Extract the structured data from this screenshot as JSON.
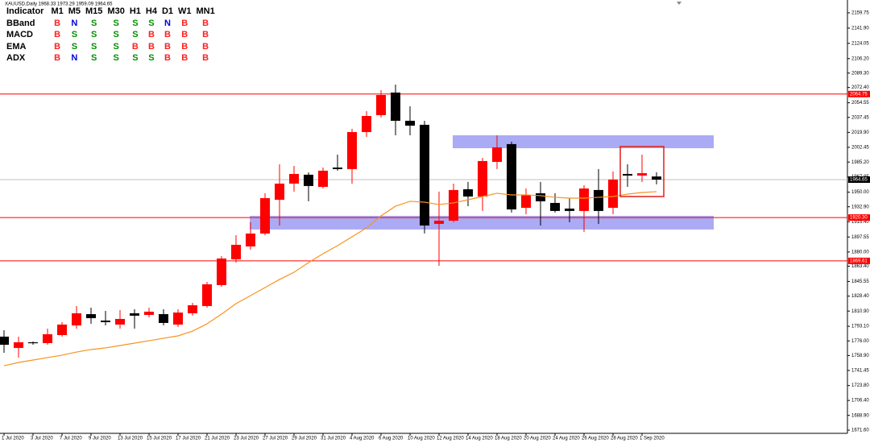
{
  "chart_data": {
    "type": "candlestick",
    "title": "XAUUSD,Daily 1968.33 1973.29 1959.09 1964.65",
    "categories": [
      "1 Jul 2020",
      null,
      "3 Jul 2020",
      null,
      "7 Jul 2020",
      null,
      "9 Jul 2020",
      null,
      "13 Jul 2020",
      null,
      "15 Jul 2020",
      null,
      "17 Jul 2020",
      null,
      "21 Jul 2020",
      null,
      "23 Jul 2020",
      null,
      "27 Jul 2020",
      null,
      "29 Jul 2020",
      null,
      "31 Jul 2020",
      null,
      "4 Aug 2020",
      null,
      "6 Aug 2020",
      null,
      "10 Aug 2020",
      null,
      "12 Aug 2020",
      null,
      "14 Aug 2020",
      null,
      "18 Aug 2020",
      null,
      "20 Aug 2020",
      null,
      "24 Aug 2020",
      null,
      "26 Aug 2020",
      null,
      "28 Aug 2020",
      null,
      "1 Sep 2020",
      null
    ],
    "open": [
      1781.0,
      1767.8,
      1774.4,
      1773.4,
      1782.8,
      1794.1,
      1807.3,
      1799.8,
      1795.1,
      1808.3,
      1806.4,
      1807.3,
      1795.1,
      1808.3,
      1816.8,
      1841.3,
      1871.4,
      1886.5,
      1901.6,
      1941.1,
      1960.0,
      1970.4,
      1956.2,
      1978.8,
      1977.0,
      2020.3,
      2040.1,
      2066.5,
      2033.5,
      2028.8,
      1912.9,
      1916.6,
      1953.4,
      1944.9,
      1985.4,
      2006.2,
      1931.7,
      1948.7,
      1937.4,
      1930.8,
      1928.0,
      1952.5,
      1931.7,
      1971.3,
      1969.4,
      1968.33
    ],
    "high": [
      1788.5,
      1781.0,
      1775.3,
      1790.4,
      1797.9,
      1816.8,
      1814.9,
      1811.1,
      1812.0,
      1813.0,
      1814.9,
      1813.0,
      1813.0,
      1820.5,
      1845.0,
      1875.2,
      1899.7,
      1914.8,
      1948.7,
      1982.6,
      1980.7,
      1973.2,
      1978.8,
      1993.9,
      2024.1,
      2044.8,
      2069.3,
      2075.9,
      2050.4,
      2033.5,
      1950.6,
      1960.0,
      1961.9,
      1990.1,
      2016.5,
      2009.0,
      1954.3,
      1961.9,
      1948.7,
      1943.0,
      1958.1,
      1977.0,
      1974.1,
      1982.6,
      1993.9,
      1973.29
    ],
    "low": [
      1762.1,
      1756.5,
      1771.5,
      1771.5,
      1781.0,
      1790.4,
      1796.0,
      1794.1,
      1790.4,
      1790.4,
      1803.6,
      1794.1,
      1792.3,
      1805.5,
      1814.9,
      1839.4,
      1867.6,
      1882.7,
      1899.7,
      1911.0,
      1950.6,
      1939.3,
      1954.3,
      1975.1,
      1960.0,
      2014.6,
      2037.3,
      2016.5,
      2016.5,
      1901.6,
      1863.9,
      1914.8,
      1933.6,
      1928.0,
      1977.0,
      1926.1,
      1924.2,
      1911.0,
      1926.1,
      1914.8,
      1903.5,
      1912.9,
      1924.2,
      1956.2,
      1961.9,
      1959.09
    ],
    "close": [
      1771.5,
      1774.4,
      1773.4,
      1783.8,
      1795.1,
      1808.3,
      1802.6,
      1797.9,
      1801.7,
      1805.5,
      1810.2,
      1797.0,
      1809.2,
      1817.7,
      1842.2,
      1872.4,
      1888.4,
      1901.6,
      1943.0,
      1960.0,
      1971.3,
      1957.2,
      1975.1,
      1977.0,
      2020.3,
      2039.1,
      2063.6,
      2033.5,
      2027.8,
      1911.0,
      1916.6,
      1952.5,
      1944.9,
      1986.4,
      2002.4,
      1929.8,
      1946.8,
      1939.3,
      1928.0,
      1928.0,
      1954.3,
      1928.0,
      1964.7,
      1969.4,
      1972.2,
      1964.65
    ],
    "up_color": "#ff0000",
    "down_color": "#000000",
    "ma_values": [
      1747.0,
      1750.8,
      1753.6,
      1756.5,
      1759.3,
      1763.0,
      1765.9,
      1767.8,
      1770.6,
      1773.4,
      1776.2,
      1779.1,
      1781.9,
      1787.5,
      1796.0,
      1807.3,
      1819.6,
      1829.0,
      1838.4,
      1847.9,
      1856.3,
      1867.6,
      1878.0,
      1887.4,
      1897.8,
      1908.2,
      1922.3,
      1933.6,
      1939.3,
      1938.3,
      1935.5,
      1937.4,
      1941.1,
      1944.9,
      1948.7,
      1946.8,
      1946.8,
      1945.9,
      1944.0,
      1943.0,
      1943.0,
      1944.0,
      1944.9,
      1947.7,
      1949.6,
      1950.6
    ],
    "ma_color": "#f7931e",
    "levels": {
      "values": [
        2064.75,
        1920.3,
        1869.61
      ],
      "value_labels": [
        "2064.75",
        "1920.30",
        "1869.61"
      ],
      "color": "#ff0000"
    },
    "zones": [
      {
        "top": 2016.5,
        "bottom": 2001.4
      },
      {
        "top": 1922.3,
        "bottom": 1906.3
      }
    ],
    "zone_color": "#aaaaf5",
    "box": {
      "top": 2003.3,
      "bottom": 1944.9,
      "color": "#e0201a"
    },
    "ylim": [
      1666,
      2171
    ],
    "yticks": [
      2159.75,
      {
        "value": 2141.9,
        "label": "2141.90"
      },
      2124.05,
      {
        "value": 2106.2,
        "label": "2106.20"
      },
      {
        "value": 2089.3,
        "label": "2089.30"
      },
      {
        "value": 2072.4,
        "label": "2072.40"
      },
      2054.55,
      2037.45,
      {
        "value": 2019.9,
        "label": "2019.90"
      },
      2002.45,
      {
        "value": 1985.2,
        "label": "1985.20"
      },
      1967.85,
      {
        "value": 1950,
        "label": "1950.00"
      },
      {
        "value": 1932.9,
        "label": "1932.90"
      },
      {
        "value": 1915.4,
        "label": "1915.40"
      },
      1897.55,
      {
        "value": 1880,
        "label": "1880.00"
      },
      {
        "value": 1863.4,
        "label": "1863.40"
      },
      1845.55,
      {
        "value": 1828.4,
        "label": "1828.40"
      },
      {
        "value": 1810.9,
        "label": "1810.90"
      },
      {
        "value": 1793.1,
        "label": "1793.10"
      },
      {
        "value": 1776,
        "label": "1776.00"
      },
      {
        "value": 1758.9,
        "label": "1758.90"
      },
      1741.45,
      {
        "value": 1723.8,
        "label": "1723.80"
      },
      {
        "value": 1706.4,
        "label": "1706.40"
      },
      {
        "value": 1688.9,
        "label": "1688.90"
      },
      {
        "value": 1671.6,
        "label": "1671.60"
      }
    ]
  },
  "table": {
    "header": [
      "Indicator",
      "M1",
      "M5",
      "M15",
      "M30",
      "H1",
      "H4",
      "D1",
      "W1",
      "MN1"
    ],
    "rows": [
      {
        "name": "BBand",
        "signals": [
          "B",
          "N",
          "S",
          "S",
          "S",
          "S",
          "N",
          "B",
          "B"
        ]
      },
      {
        "name": "MACD",
        "signals": [
          "B",
          "S",
          "S",
          "S",
          "S",
          "B",
          "B",
          "B",
          "B"
        ]
      },
      {
        "name": "EMA",
        "signals": [
          "B",
          "S",
          "S",
          "S",
          "B",
          "B",
          "B",
          "B",
          "B"
        ]
      },
      {
        "name": "ADX",
        "signals": [
          "B",
          "N",
          "S",
          "S",
          "S",
          "S",
          "B",
          "B",
          "B"
        ]
      }
    ],
    "colors": {
      "B": "#ff2020",
      "S": "#009000",
      "N": "#0000e0"
    }
  }
}
